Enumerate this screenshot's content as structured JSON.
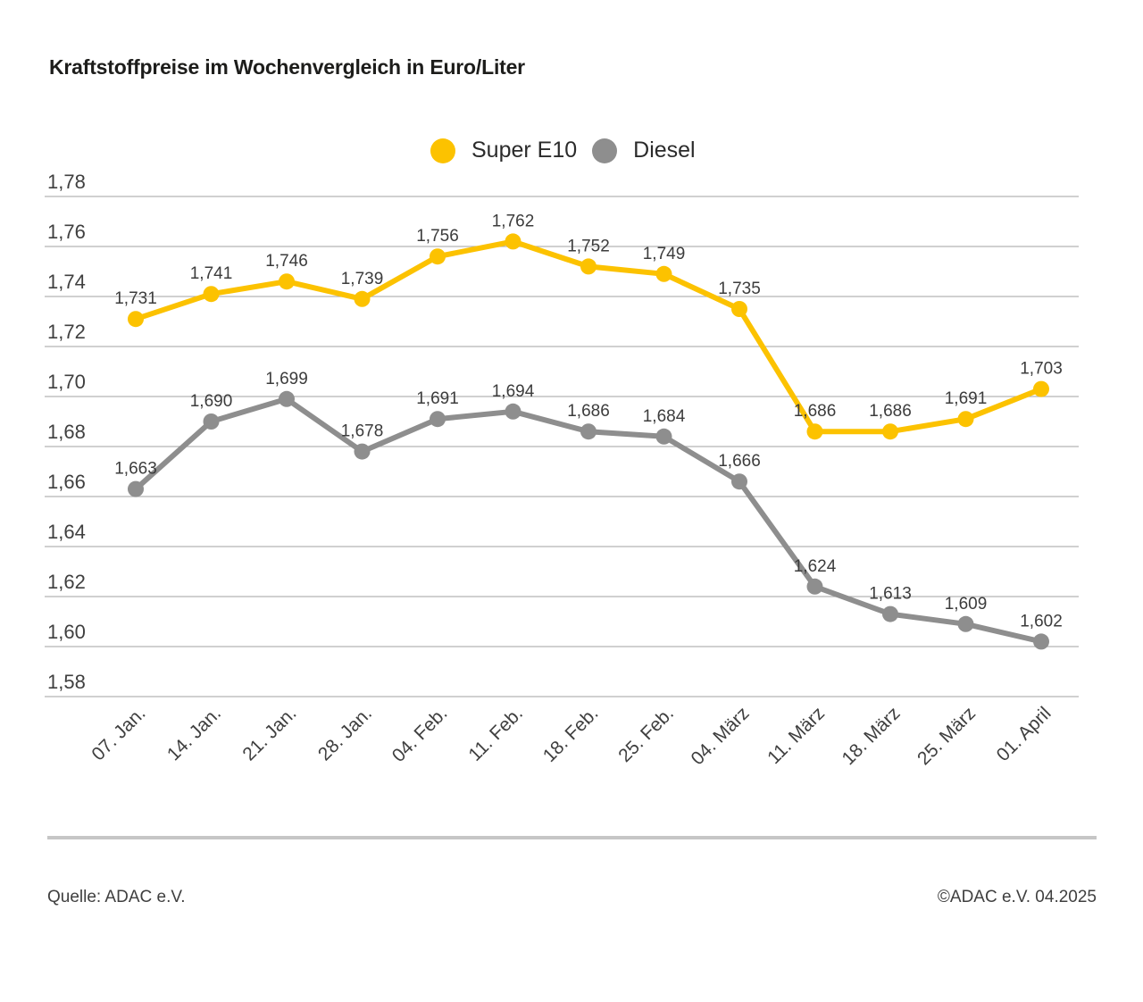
{
  "title": "Kraftstoffpreise im Wochenvergleich in Euro/Liter",
  "legend": {
    "items": [
      {
        "label": "Super E10",
        "color": "#FCC200"
      },
      {
        "label": "Diesel",
        "color": "#8E8E8E"
      }
    ]
  },
  "footer": {
    "source": "Quelle: ADAC e.V.",
    "copyright": "©ADAC e.V. 04.2025"
  },
  "chart_data": {
    "type": "line",
    "title": "Kraftstoffpreise im Wochenvergleich in Euro/Liter",
    "unit": "Euro/Liter",
    "categories": [
      "07. Jan.",
      "14. Jan.",
      "21. Jan.",
      "28. Jan.",
      "04. Feb.",
      "11. Feb.",
      "18. Feb.",
      "25. Feb.",
      "04. März",
      "11. März",
      "18. März",
      "25. März",
      "01. April"
    ],
    "series": [
      {
        "name": "Super E10",
        "color": "#FCC200",
        "values": [
          1.731,
          1.741,
          1.746,
          1.739,
          1.756,
          1.762,
          1.752,
          1.749,
          1.735,
          1.686,
          1.686,
          1.691,
          1.703
        ],
        "labels": [
          "1,731",
          "1,741",
          "1,746",
          "1,739",
          "1,756",
          "1,762",
          "1,752",
          "1,749",
          "1,735",
          "1,686",
          "1,686",
          "1,691",
          "1,703"
        ]
      },
      {
        "name": "Diesel",
        "color": "#8E8E8E",
        "values": [
          1.663,
          1.69,
          1.699,
          1.678,
          1.691,
          1.694,
          1.686,
          1.684,
          1.666,
          1.624,
          1.613,
          1.609,
          1.602
        ],
        "labels": [
          "1,663",
          "1,690",
          "1,699",
          "1,678",
          "1,691",
          "1,694",
          "1,686",
          "1,684",
          "1,666",
          "1,624",
          "1,613",
          "1,609",
          "1,602"
        ]
      }
    ],
    "ylim": [
      1.58,
      1.78
    ],
    "ytick_step": 0.02,
    "y_tick_labels": [
      "1,78",
      "1,76",
      "1,74",
      "1,72",
      "1,70",
      "1,68",
      "1,66",
      "1,64",
      "1,62",
      "1,60",
      "1,58"
    ],
    "grid": "horizontal-only",
    "legend_position": "top-center",
    "grid_color": "#b3b3b3",
    "text_color": "#3f3f3f"
  }
}
